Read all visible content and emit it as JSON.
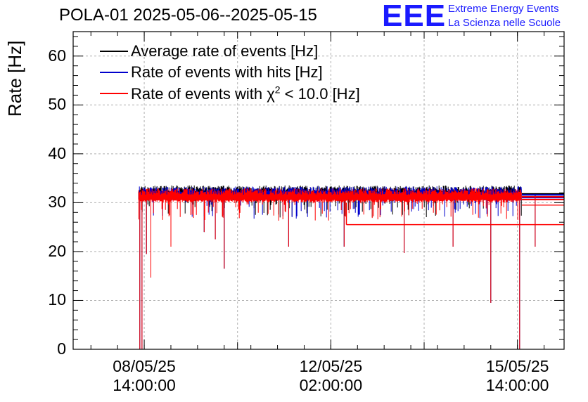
{
  "header": {
    "title": "POLA-01 2025-05-06--2025-05-15",
    "logo_text": "EEE",
    "logo_line1": "Extreme Energy Events",
    "logo_line2": "La Scienza nelle Scuole"
  },
  "chart_data": {
    "type": "line",
    "ylabel": "Rate [Hz]",
    "ylim": [
      0,
      65
    ],
    "yticks": [
      "0",
      "10",
      "20",
      "30",
      "40",
      "50",
      "60"
    ],
    "xlim": [
      "2025-05-07T06:00:00",
      "2025-05-16T11:00:00"
    ],
    "xticks": [
      {
        "date": "08/05/25",
        "time": "14:00:00"
      },
      {
        "date": "12/05/25",
        "time": "02:00:00"
      },
      {
        "date": "15/05/25",
        "time": "14:00:00"
      }
    ],
    "grid": true,
    "legend_position": "top-left",
    "series": [
      {
        "name": "Average rate of events [Hz]",
        "color": "#000000",
        "level": 31.8
      },
      {
        "name": "Rate of events with hits [Hz]",
        "color": "#0000cc",
        "level": 31.6
      },
      {
        "name": "Rate of events with χ² < 10.0 [Hz]",
        "color": "#ff0000",
        "level": 31.2
      }
    ],
    "start": "2025-05-08T11:30:00",
    "end": "2025-05-15T16:00:00",
    "dips": [
      {
        "x": "2025-05-08T12:00:00",
        "y": 0
      },
      {
        "x": "2025-05-08T13:00:00",
        "y": 0
      },
      {
        "x": "2025-05-08T15:00:00",
        "y": 19.5
      },
      {
        "x": "2025-05-08T17:00:00",
        "y": 14.7
      },
      {
        "x": "2025-05-09T02:00:00",
        "y": 21
      },
      {
        "x": "2025-05-09T17:00:00",
        "y": 24
      },
      {
        "x": "2025-05-09T22:00:00",
        "y": 22.5
      },
      {
        "x": "2025-05-10T02:00:00",
        "y": 16.5
      },
      {
        "x": "2025-05-11T07:00:00",
        "y": 21
      },
      {
        "x": "2025-05-12T08:00:00",
        "y": 21
      },
      {
        "x": "2025-05-13T11:00:00",
        "y": 19.7
      },
      {
        "x": "2025-05-14T09:00:00",
        "y": 21
      },
      {
        "x": "2025-05-15T02:00:00",
        "y": 9.5
      },
      {
        "x": "2025-05-15T15:00:00",
        "y": 0
      },
      {
        "x": "2025-05-15T22:00:00",
        "y": 21
      }
    ],
    "plateau": {
      "from": "2025-05-12T09:00:00",
      "to": "2025-05-16T11:00:00",
      "y": 25.5
    }
  }
}
